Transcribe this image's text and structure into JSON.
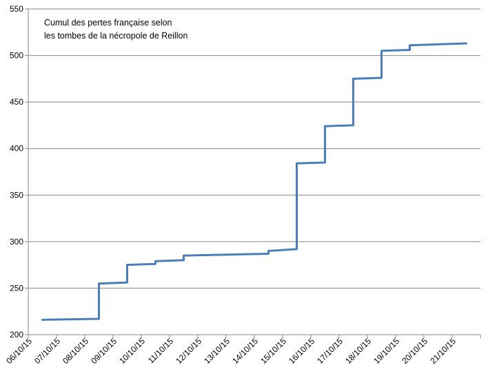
{
  "chart_data": {
    "type": "line",
    "title": "",
    "annotation": [
      "Cumul des pertes française selon",
      "les tombes de la nécropole de Reillon"
    ],
    "xlabel": "",
    "ylabel": "",
    "ylim": [
      200,
      550
    ],
    "y_ticks": [
      "200",
      "250",
      "300",
      "350",
      "400",
      "450",
      "500",
      "550"
    ],
    "x_ticks": [
      "06/10/15",
      "07/10/15",
      "08/10/15",
      "09/10/15",
      "10/10/15",
      "11/10/15",
      "12/10/15",
      "13/10/15",
      "14/10/15",
      "15/10/15",
      "16/10/15",
      "17/10/15",
      "18/10/15",
      "19/10/15",
      "20/10/15",
      "21/10/15"
    ],
    "grid": "horizontal",
    "line_color": "#4a7ebb",
    "series": [
      {
        "points": [
          {
            "x": "06/10/15 12:00",
            "y": 216
          },
          {
            "x": "08/10/15 12:00",
            "y": 217
          },
          {
            "x": "08/10/15 12:00",
            "y": 255
          },
          {
            "x": "09/10/15 12:00",
            "y": 256
          },
          {
            "x": "09/10/15 12:00",
            "y": 275
          },
          {
            "x": "10/10/15 12:00",
            "y": 276
          },
          {
            "x": "10/10/15 12:00",
            "y": 279
          },
          {
            "x": "11/10/15 12:00",
            "y": 280
          },
          {
            "x": "11/10/15 12:00",
            "y": 285
          },
          {
            "x": "14/10/15 12:00",
            "y": 287
          },
          {
            "x": "14/10/15 12:00",
            "y": 290
          },
          {
            "x": "15/10/15 12:00",
            "y": 292
          },
          {
            "x": "15/10/15 12:00",
            "y": 384
          },
          {
            "x": "16/10/15 12:00",
            "y": 385
          },
          {
            "x": "16/10/15 12:00",
            "y": 424
          },
          {
            "x": "17/10/15 12:00",
            "y": 425
          },
          {
            "x": "17/10/15 12:00",
            "y": 475
          },
          {
            "x": "18/10/15 12:00",
            "y": 476
          },
          {
            "x": "18/10/15 12:00",
            "y": 505
          },
          {
            "x": "19/10/15 12:00",
            "y": 506
          },
          {
            "x": "19/10/15 12:00",
            "y": 511
          },
          {
            "x": "21/10/15 12:00",
            "y": 513
          }
        ]
      }
    ]
  }
}
